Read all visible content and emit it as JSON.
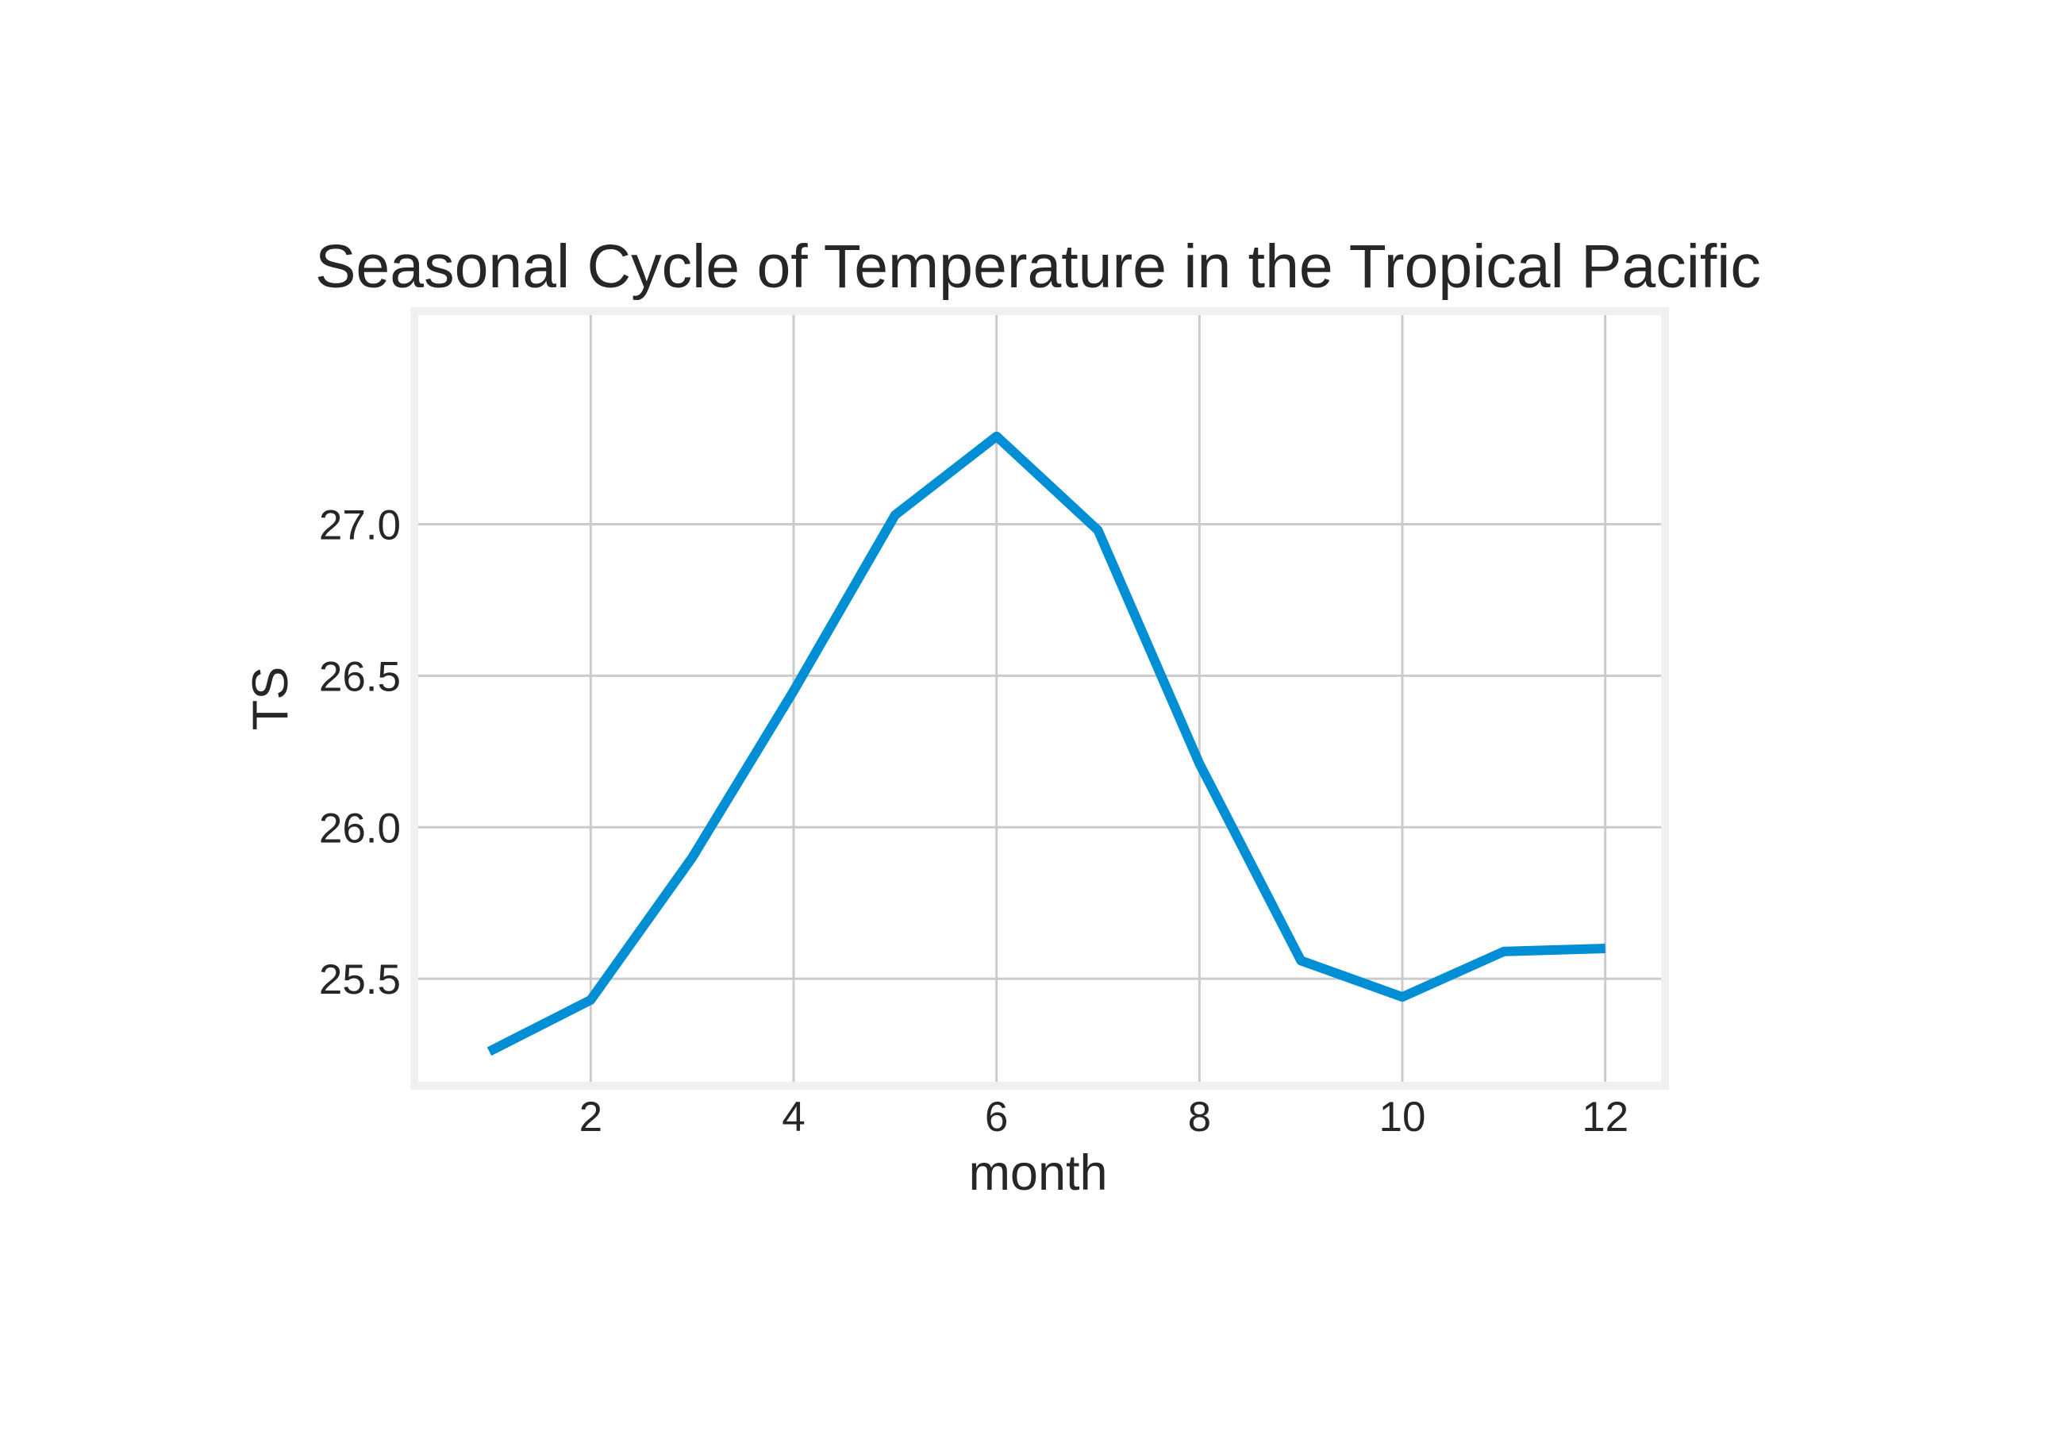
{
  "chart_data": {
    "type": "line",
    "title": "Seasonal Cycle of Temperature in the Tropical Pacific",
    "xlabel": "month",
    "ylabel": "TS",
    "x": [
      1,
      2,
      3,
      4,
      5,
      6,
      7,
      8,
      9,
      10,
      11,
      12
    ],
    "series": [
      {
        "values": [
          25.26,
          25.43,
          25.9,
          26.45,
          27.03,
          27.29,
          26.98,
          26.21,
          25.56,
          25.44,
          25.59,
          25.6
        ]
      }
    ],
    "xticks": [
      2,
      4,
      6,
      8,
      10,
      12
    ],
    "xtick_labels": [
      "2",
      "4",
      "6",
      "8",
      "10",
      "12"
    ],
    "yticks": [
      25.5,
      26.0,
      26.5,
      27.0
    ],
    "ytick_labels": [
      "25.5",
      "26.0",
      "26.5",
      "27.0"
    ],
    "xlim": [
      0.3,
      12.55
    ],
    "ylim": [
      25.16,
      27.69
    ],
    "grid": true,
    "line_color": "#008fd5",
    "background_color": "#ffffff"
  }
}
